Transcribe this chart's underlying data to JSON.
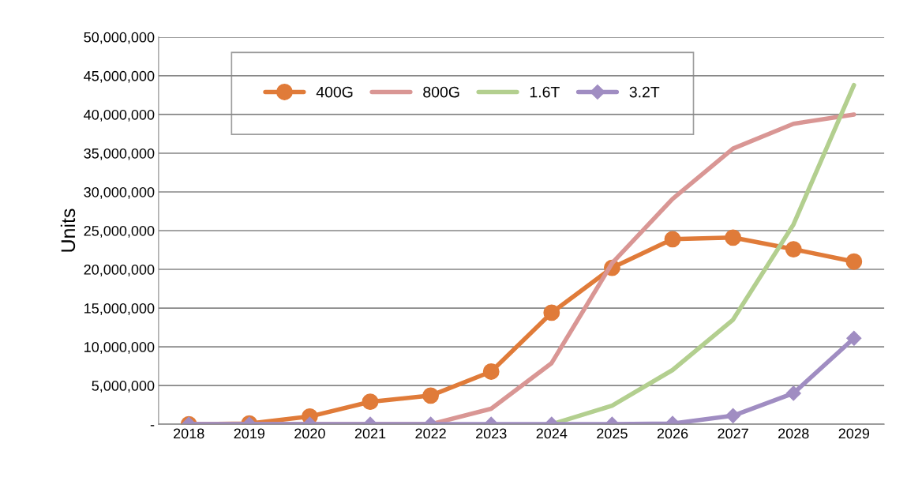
{
  "chart_data": {
    "type": "line",
    "ylabel": "Units",
    "categories": [
      "2018",
      "2019",
      "2020",
      "2021",
      "2022",
      "2023",
      "2024",
      "2025",
      "2026",
      "2027",
      "2028",
      "2029"
    ],
    "series": [
      {
        "name": "400G",
        "color": "#e07b39",
        "marker": "circle",
        "values": [
          0,
          100000,
          1000000,
          2900000,
          3700000,
          6800000,
          14400000,
          20200000,
          23900000,
          24100000,
          22600000,
          21000000
        ]
      },
      {
        "name": "800G",
        "color": "#d99694",
        "marker": "none",
        "values": [
          0,
          0,
          0,
          0,
          0,
          2000000,
          7900000,
          20800000,
          29100000,
          35600000,
          38800000,
          40000000
        ]
      },
      {
        "name": "1.6T",
        "color": "#b3cf8f",
        "marker": "none",
        "values": [
          null,
          null,
          null,
          null,
          null,
          null,
          0,
          2400000,
          7000000,
          13500000,
          25800000,
          43800000
        ]
      },
      {
        "name": "3.2T",
        "color": "#a08dc2",
        "marker": "diamond",
        "values": [
          0,
          0,
          0,
          0,
          0,
          0,
          0,
          0,
          100000,
          1100000,
          4000000,
          11100000
        ]
      }
    ],
    "ylim": [
      0,
      50000000
    ],
    "yticks": [
      {
        "value": 0,
        "label": "-"
      },
      {
        "value": 5000000,
        "label": "5,000,000"
      },
      {
        "value": 10000000,
        "label": "10,000,000"
      },
      {
        "value": 15000000,
        "label": "15,000,000"
      },
      {
        "value": 20000000,
        "label": "20,000,000"
      },
      {
        "value": 25000000,
        "label": "25,000,000"
      },
      {
        "value": 30000000,
        "label": "30,000,000"
      },
      {
        "value": 35000000,
        "label": "35,000,000"
      },
      {
        "value": 40000000,
        "label": "40,000,000"
      },
      {
        "value": 45000000,
        "label": "45,000,000"
      },
      {
        "value": 50000000,
        "label": "50,000,000"
      }
    ],
    "grid": "y",
    "legend": "top left",
    "line_style": "solid"
  }
}
